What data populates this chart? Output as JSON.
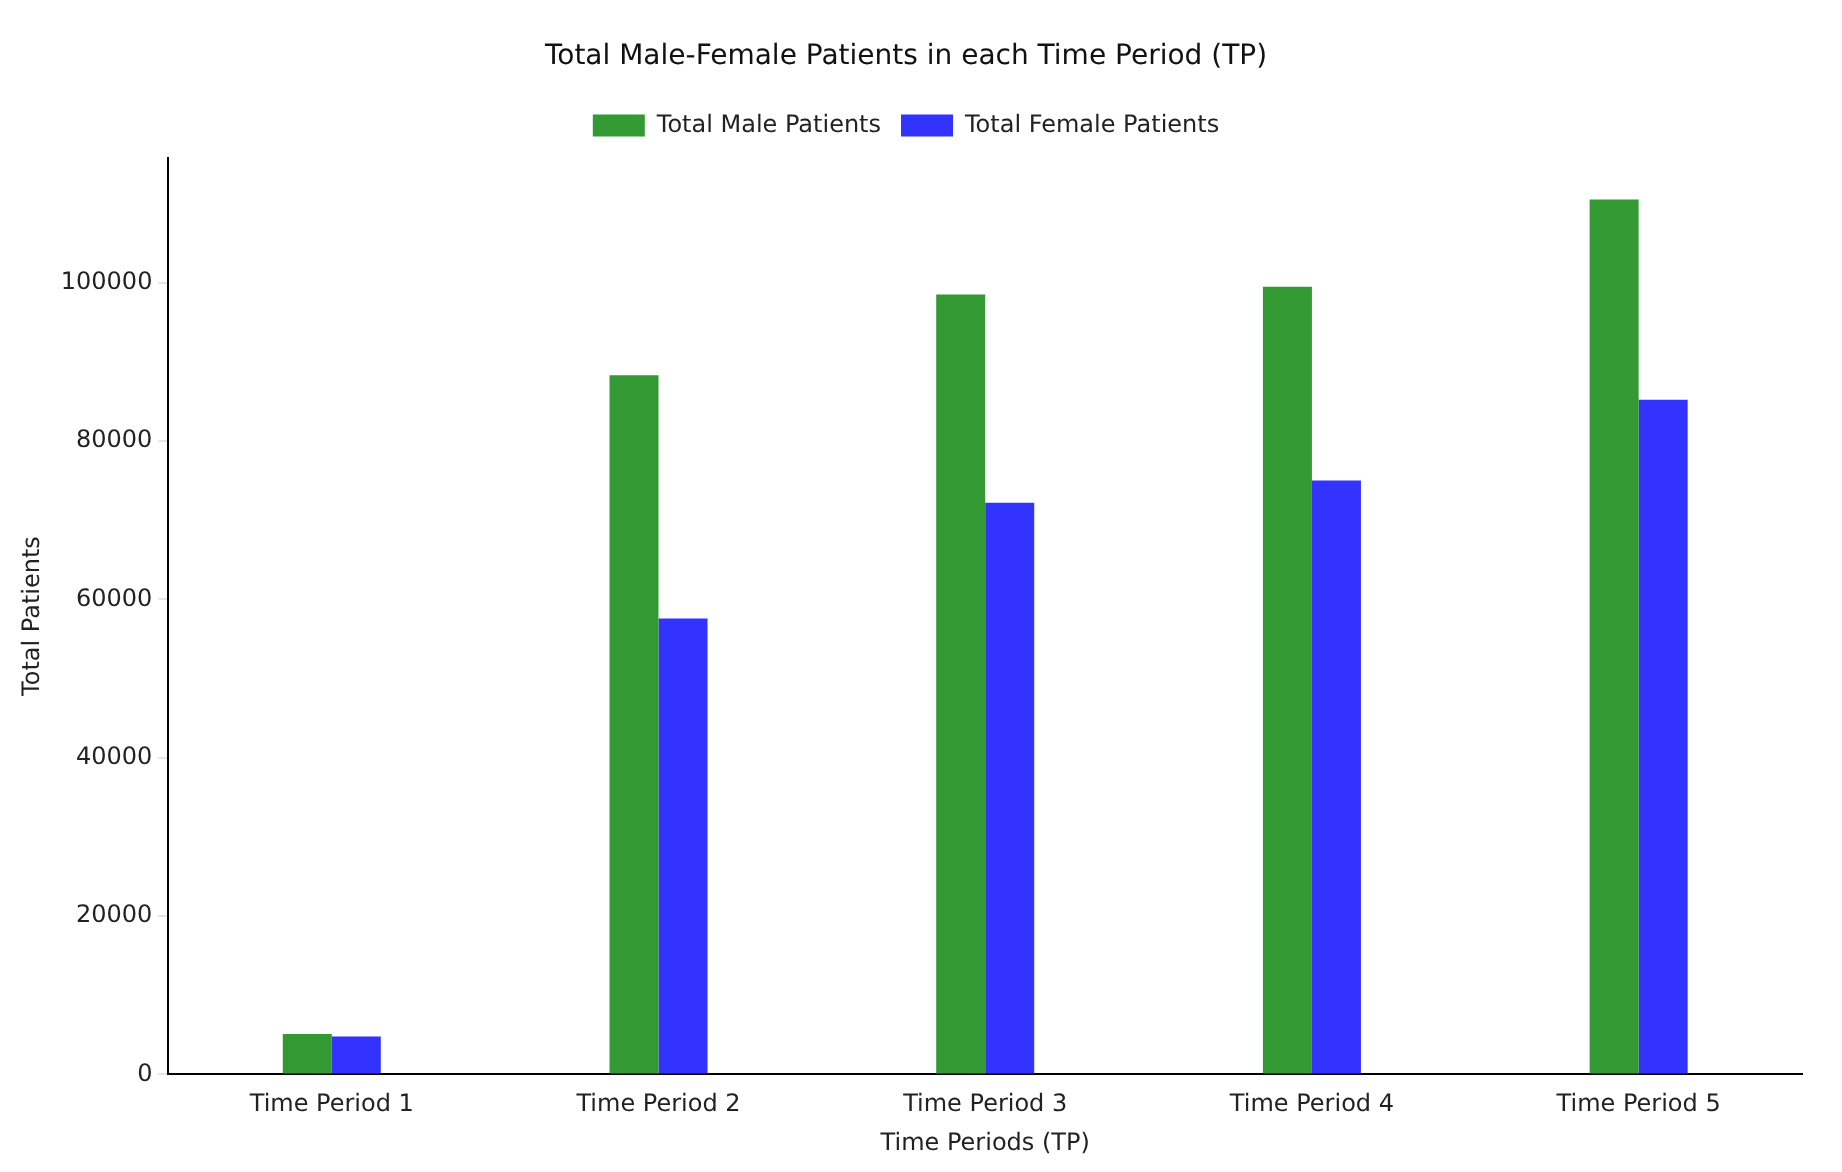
{
  "chart_data": {
    "type": "bar",
    "title": "Total Male-Female Patients in each Time Period (TP)",
    "xlabel": "Time Periods (TP)",
    "ylabel": "Total Patients",
    "categories": [
      "Time Period 1",
      "Time Period 2",
      "Time Period 3",
      "Time Period 4",
      "Time Period 5"
    ],
    "series": [
      {
        "name": "Total Male Patients",
        "color": "#339933",
        "values": [
          5100,
          88300,
          98500,
          99500,
          110500
        ]
      },
      {
        "name": "Total Female Patients",
        "color": "#3333ff",
        "values": [
          4800,
          57600,
          72200,
          75000,
          85200
        ]
      }
    ],
    "ylim": [
      0,
      115800
    ],
    "yticks": [
      0,
      20000,
      40000,
      60000,
      80000,
      100000
    ],
    "grid": false,
    "legend": "top"
  }
}
